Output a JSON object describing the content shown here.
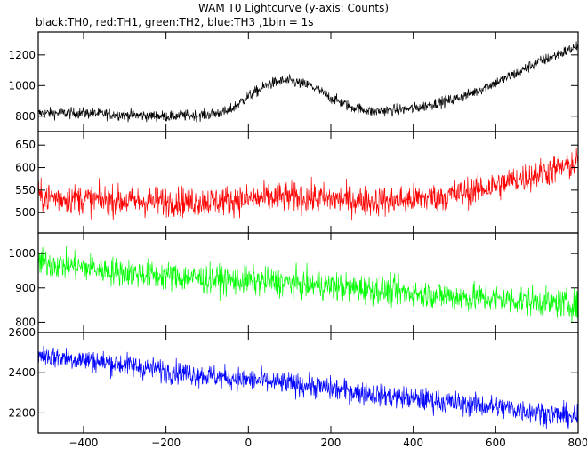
{
  "title": "WAM T0 Lightcurve (y-axis: Counts)",
  "legend_text": "black:TH0, red:TH1, green:TH2, blue:TH3 ,1bin = 1s",
  "chart_data": [
    {
      "type": "line",
      "title": "",
      "xlabel": "",
      "ylabel": "",
      "xlim": [
        -510,
        800
      ],
      "ylim": [
        700,
        1350
      ],
      "yticks": [
        800,
        1000,
        1200
      ],
      "xticks": [
        -400,
        -200,
        0,
        200,
        400,
        600,
        800
      ],
      "grid": false,
      "series": [
        {
          "color": "#000000",
          "x": [
            -510,
            -400,
            -300,
            -200,
            -100,
            -50,
            0,
            50,
            80,
            100,
            150,
            200,
            250,
            300,
            350,
            400,
            450,
            500,
            550,
            600,
            650,
            700,
            750,
            800
          ],
          "y": [
            820,
            820,
            810,
            800,
            810,
            830,
            930,
            1010,
            1030,
            1030,
            1000,
            920,
            860,
            830,
            840,
            850,
            880,
            910,
            960,
            1020,
            1080,
            1150,
            1200,
            1260
          ],
          "noise": 35
        }
      ]
    },
    {
      "type": "line",
      "title": "",
      "xlabel": "",
      "ylabel": "",
      "xlim": [
        -510,
        800
      ],
      "ylim": [
        455,
        680
      ],
      "yticks": [
        500,
        550,
        600,
        650
      ],
      "xticks": [
        -400,
        -200,
        0,
        200,
        400,
        600,
        800
      ],
      "grid": false,
      "series": [
        {
          "color": "#ff0000",
          "x": [
            -510,
            -400,
            -300,
            -200,
            -100,
            0,
            100,
            200,
            300,
            400,
            500,
            600,
            700,
            800
          ],
          "y": [
            535,
            530,
            525,
            525,
            525,
            530,
            535,
            530,
            525,
            530,
            540,
            560,
            585,
            610
          ],
          "noise": 32
        }
      ]
    },
    {
      "type": "line",
      "title": "",
      "xlabel": "",
      "ylabel": "",
      "xlim": [
        -510,
        800
      ],
      "ylim": [
        770,
        1060
      ],
      "yticks": [
        800,
        900,
        1000
      ],
      "xticks": [
        -400,
        -200,
        0,
        200,
        400,
        600,
        800
      ],
      "grid": false,
      "series": [
        {
          "color": "#00ff00",
          "x": [
            -510,
            -400,
            -300,
            -200,
            -100,
            0,
            100,
            200,
            300,
            400,
            500,
            600,
            700,
            800
          ],
          "y": [
            975,
            960,
            945,
            935,
            925,
            920,
            915,
            905,
            895,
            885,
            875,
            868,
            860,
            850
          ],
          "noise": 40
        }
      ]
    },
    {
      "type": "line",
      "title": "",
      "xlabel": "",
      "ylabel": "",
      "xlim": [
        -510,
        800
      ],
      "ylim": [
        2100,
        2600
      ],
      "yticks": [
        2200,
        2400,
        2600
      ],
      "xticks": [
        -400,
        -200,
        0,
        200,
        400,
        600,
        800
      ],
      "grid": false,
      "series": [
        {
          "color": "#0000ff",
          "x": [
            -510,
            -400,
            -300,
            -200,
            -100,
            0,
            100,
            200,
            300,
            400,
            500,
            600,
            700,
            800
          ],
          "y": [
            2490,
            2465,
            2440,
            2410,
            2385,
            2365,
            2345,
            2320,
            2295,
            2270,
            2250,
            2230,
            2205,
            2175
          ],
          "noise": 55
        }
      ]
    }
  ]
}
